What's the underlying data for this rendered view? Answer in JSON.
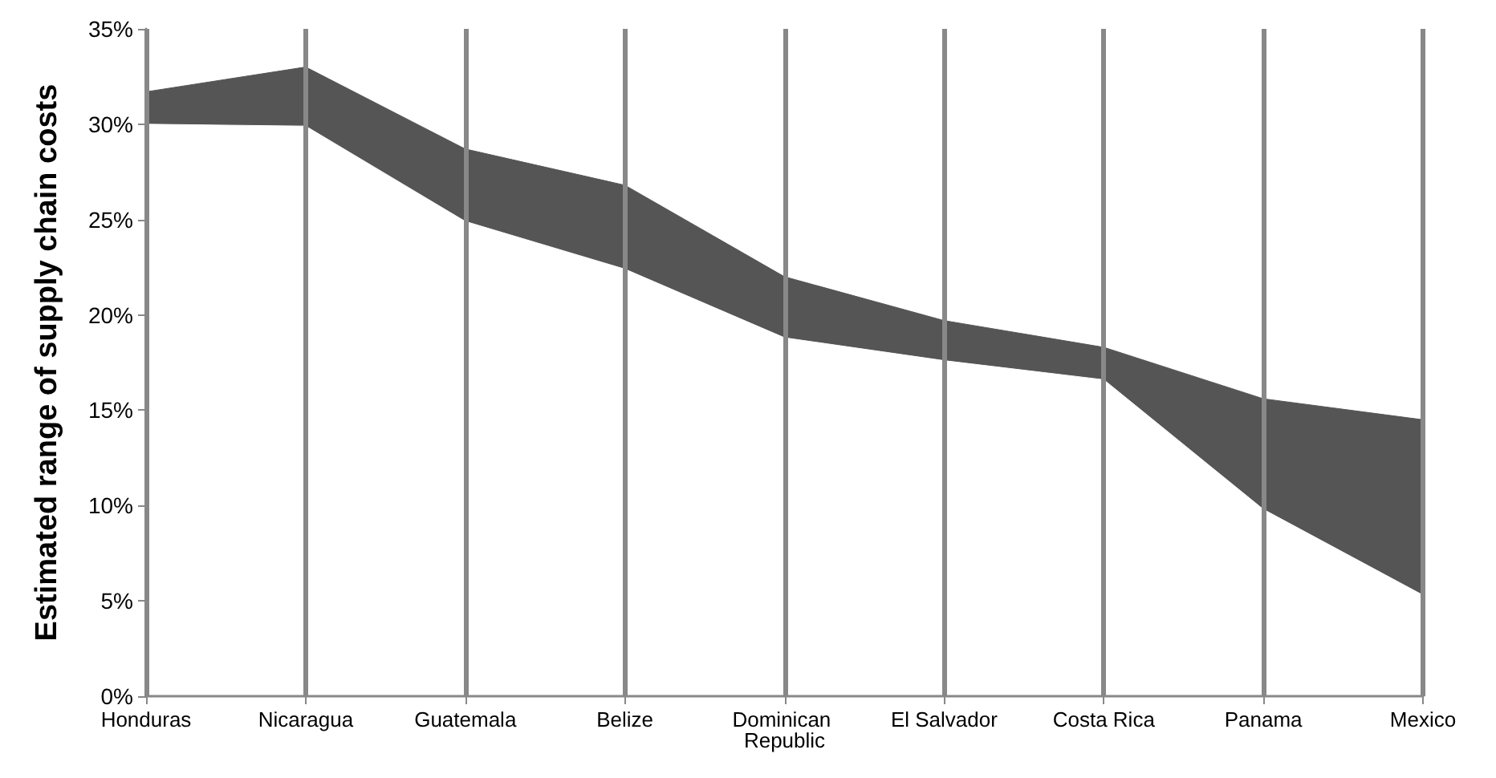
{
  "chart_data": {
    "type": "area",
    "ylabel": "Estimated range of supply chain costs",
    "stacked": true,
    "categories": [
      "Honduras",
      "Nicaragua",
      "Guatemala",
      "Belize",
      "Dominican Republic",
      "El Salvador",
      "Costa Rica",
      "Panama",
      "Mexico"
    ],
    "series": [
      {
        "color": "#ffffff",
        "values": [
          30.0,
          29.9,
          24.9,
          22.4,
          18.8,
          17.6,
          16.6,
          9.8,
          5.3
        ]
      },
      {
        "color": "#555555",
        "values": [
          1.7,
          3.1,
          3.8,
          4.4,
          3.2,
          2.1,
          1.7,
          5.8,
          9.2
        ]
      }
    ],
    "ylim": [
      0,
      35
    ],
    "yticks": [
      {
        "value": 0,
        "label": "0%"
      },
      {
        "value": 5,
        "label": "5%"
      },
      {
        "value": 10,
        "label": "10%"
      },
      {
        "value": 15,
        "label": "15%"
      },
      {
        "value": 20,
        "label": "20%"
      },
      {
        "value": 25,
        "label": "25%"
      },
      {
        "value": 30,
        "label": "30%"
      },
      {
        "value": 35,
        "label": "35%"
      }
    ],
    "grid": "x"
  }
}
